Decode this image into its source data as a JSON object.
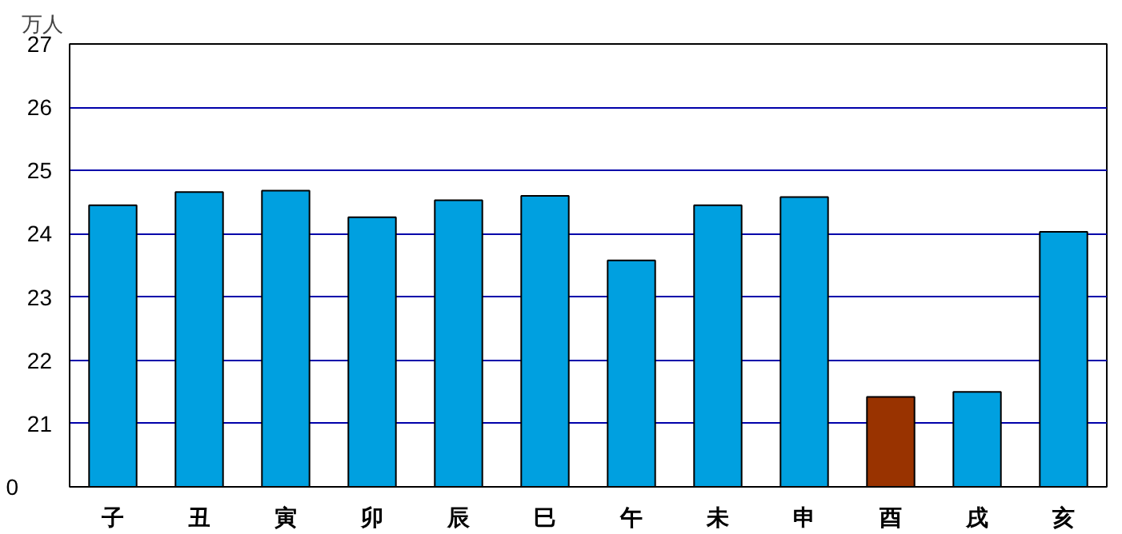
{
  "chart_data": {
    "type": "bar",
    "ylabel": "万人",
    "categories": [
      "子",
      "丑",
      "寅",
      "卯",
      "辰",
      "巳",
      "午",
      "未",
      "申",
      "酉",
      "戌",
      "亥"
    ],
    "values": [
      24.45,
      24.66,
      24.68,
      24.26,
      24.53,
      24.6,
      23.58,
      24.45,
      24.58,
      21.42,
      21.5,
      24.03
    ],
    "colors": [
      "#00a0e0",
      "#00a0e0",
      "#00a0e0",
      "#00a0e0",
      "#00a0e0",
      "#00a0e0",
      "#00a0e0",
      "#00a0e0",
      "#00a0e0",
      "#993300",
      "#00a0e0",
      "#00a0e0"
    ],
    "ylim": [
      20,
      27
    ],
    "yticks": [
      {
        "value": 20,
        "label": null
      },
      21,
      22,
      23,
      24,
      25,
      26,
      27
    ],
    "annotations": [
      "0"
    ],
    "grid": "y"
  }
}
